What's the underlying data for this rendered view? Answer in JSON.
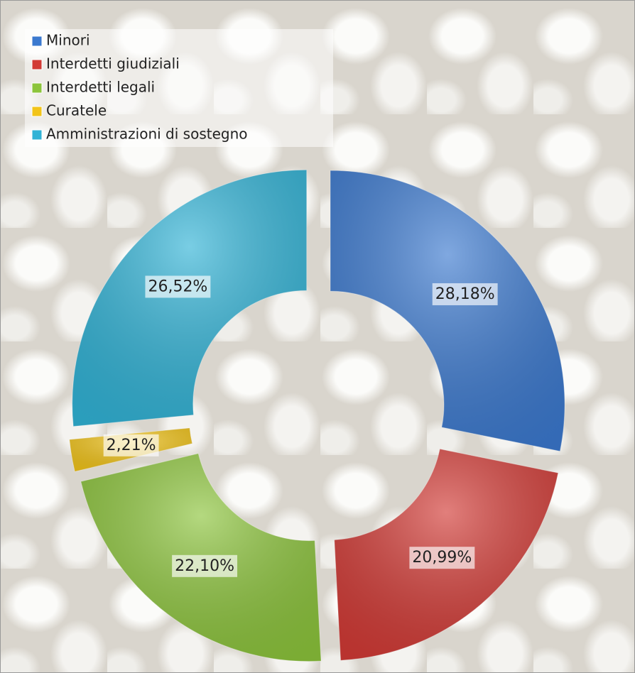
{
  "chart_data": {
    "type": "donut",
    "categories": [
      "Minori",
      "Interdetti giudiziali",
      "Interdetti legali",
      "Curatele",
      "Amministrazioni di sostegno"
    ],
    "values": [
      28.18,
      20.99,
      22.1,
      2.21,
      26.52
    ],
    "value_labels": [
      "28,18%",
      "20,99%",
      "22,10%",
      "2,21%",
      "26,52%"
    ],
    "colors": [
      "#3b79cf",
      "#d23a35",
      "#8cc43b",
      "#f2c419",
      "#31b3d6"
    ],
    "legend": "top-left"
  }
}
